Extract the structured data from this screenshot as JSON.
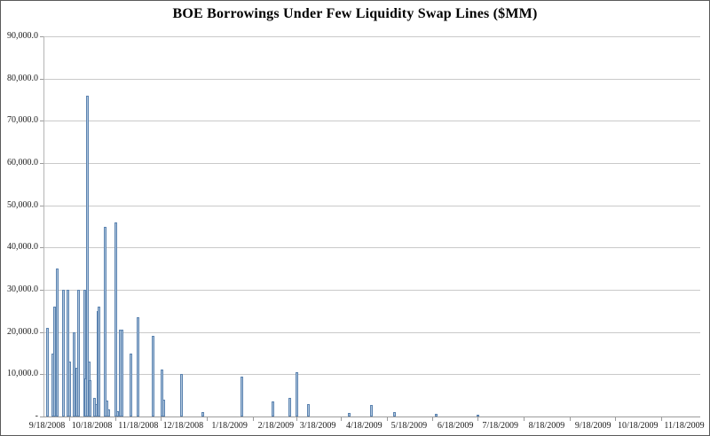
{
  "title": "BOE Borrowings Under Few Liquidity Swap Lines ($MM)",
  "chart_data": {
    "type": "bar",
    "title": "BOE Borrowings Under Few Liquidity Swap Lines ($MM)",
    "xlabel": "",
    "ylabel": "",
    "ylim": [
      0,
      90000
    ],
    "grid": true,
    "legend": "none",
    "ytick_values": [
      0,
      10000,
      20000,
      30000,
      40000,
      50000,
      60000,
      70000,
      80000,
      90000
    ],
    "ytick_labels": [
      "-",
      "10,000.0",
      "20,000.0",
      "30,000.0",
      "40,000.0",
      "50,000.0",
      "60,000.0",
      "70,000.0",
      "80,000.0",
      "90,000.0"
    ],
    "xtick_labels": [
      "9/18/2008",
      "10/18/2008",
      "11/18/2008",
      "12/18/2008",
      "1/18/2009",
      "2/18/2009",
      "3/18/2009",
      "4/18/2009",
      "5/18/2009",
      "6/18/2009",
      "7/18/2009",
      "8/18/2009",
      "9/18/2009",
      "10/18/2009",
      "11/18/2009"
    ],
    "xtick_dates": [
      "2008-09-18",
      "2008-10-18",
      "2008-11-18",
      "2008-12-18",
      "2009-01-18",
      "2009-02-18",
      "2009-03-18",
      "2009-04-18",
      "2009-05-18",
      "2009-06-18",
      "2009-07-18",
      "2009-08-18",
      "2009-09-18",
      "2009-10-18",
      "2009-11-18"
    ],
    "bars": [
      {
        "date": "2008-09-18",
        "value": 21000
      },
      {
        "date": "2008-09-22",
        "value": 15000
      },
      {
        "date": "2008-09-23",
        "value": 26000
      },
      {
        "date": "2008-09-25",
        "value": 35000
      },
      {
        "date": "2008-09-29",
        "value": 30000
      },
      {
        "date": "2008-10-02",
        "value": 30000
      },
      {
        "date": "2008-10-03",
        "value": 13000
      },
      {
        "date": "2008-10-06",
        "value": 20000
      },
      {
        "date": "2008-10-08",
        "value": 11500
      },
      {
        "date": "2008-10-09",
        "value": 30000
      },
      {
        "date": "2008-10-13",
        "value": 30000
      },
      {
        "date": "2008-10-14",
        "value": 9000
      },
      {
        "date": "2008-10-15",
        "value": 76000
      },
      {
        "date": "2008-10-16",
        "value": 13000
      },
      {
        "date": "2008-10-17",
        "value": 8500
      },
      {
        "date": "2008-10-20",
        "value": 4500
      },
      {
        "date": "2008-10-21",
        "value": 3000
      },
      {
        "date": "2008-10-22",
        "value": 25000
      },
      {
        "date": "2008-10-23",
        "value": 26000
      },
      {
        "date": "2008-10-27",
        "value": 45000
      },
      {
        "date": "2008-10-28",
        "value": 3700
      },
      {
        "date": "2008-10-29",
        "value": 1600
      },
      {
        "date": "2008-11-03",
        "value": 46000
      },
      {
        "date": "2008-11-04",
        "value": 1300
      },
      {
        "date": "2008-11-06",
        "value": 20500
      },
      {
        "date": "2008-11-07",
        "value": 20500
      },
      {
        "date": "2008-11-13",
        "value": 15000
      },
      {
        "date": "2008-11-18",
        "value": 23500
      },
      {
        "date": "2008-11-28",
        "value": 19000
      },
      {
        "date": "2008-12-04",
        "value": 11200
      },
      {
        "date": "2008-12-05",
        "value": 4000
      },
      {
        "date": "2008-12-17",
        "value": 10000
      },
      {
        "date": "2008-12-31",
        "value": 1000
      },
      {
        "date": "2009-01-26",
        "value": 9500
      },
      {
        "date": "2009-02-16",
        "value": 3500
      },
      {
        "date": "2009-02-27",
        "value": 4500
      },
      {
        "date": "2009-03-04",
        "value": 10500
      },
      {
        "date": "2009-03-12",
        "value": 3000
      },
      {
        "date": "2009-04-08",
        "value": 800
      },
      {
        "date": "2009-04-23",
        "value": 2800
      },
      {
        "date": "2009-05-08",
        "value": 1100
      },
      {
        "date": "2009-06-05",
        "value": 700
      },
      {
        "date": "2009-07-03",
        "value": 400
      }
    ],
    "bar_color": "#AEC5DD",
    "bar_border_color": "#5B83B0",
    "gridline_color": "#C9C9C9",
    "axis_color": "#9B9B9B"
  }
}
